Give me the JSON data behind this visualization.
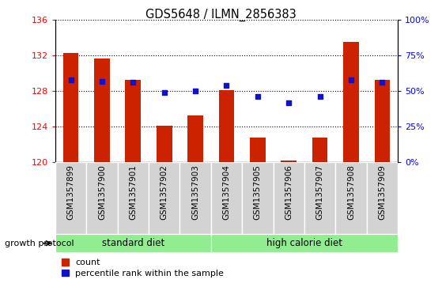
{
  "title": "GDS5648 / ILMN_2856383",
  "samples": [
    "GSM1357899",
    "GSM1357900",
    "GSM1357901",
    "GSM1357902",
    "GSM1357903",
    "GSM1357904",
    "GSM1357905",
    "GSM1357906",
    "GSM1357907",
    "GSM1357908",
    "GSM1357909"
  ],
  "counts": [
    132.3,
    131.7,
    129.3,
    124.1,
    125.3,
    128.1,
    122.8,
    120.2,
    122.8,
    133.5,
    129.3
  ],
  "percentiles": [
    58,
    57,
    56,
    49,
    50,
    54,
    46,
    42,
    46,
    58,
    56
  ],
  "ylim_left": [
    120,
    136
  ],
  "ylim_right": [
    0,
    100
  ],
  "yticks_left": [
    120,
    124,
    128,
    132,
    136
  ],
  "yticks_right": [
    0,
    25,
    50,
    75,
    100
  ],
  "ytick_labels_right": [
    "0%",
    "25%",
    "50%",
    "75%",
    "100%"
  ],
  "bar_color": "#cc2200",
  "dot_color": "#1111cc",
  "standard_diet_indices": [
    0,
    1,
    2,
    3,
    4
  ],
  "high_calorie_indices": [
    5,
    6,
    7,
    8,
    9,
    10
  ],
  "standard_diet_label": "standard diet",
  "high_calorie_label": "high calorie diet",
  "growth_protocol_label": "growth protocol",
  "legend_count_label": "count",
  "legend_percentile_label": "percentile rank within the sample",
  "tick_area_color": "#d3d3d3",
  "diet_color": "#90ee90",
  "bar_width": 0.5,
  "fig_width": 5.59,
  "fig_height": 3.63,
  "dpi": 100
}
